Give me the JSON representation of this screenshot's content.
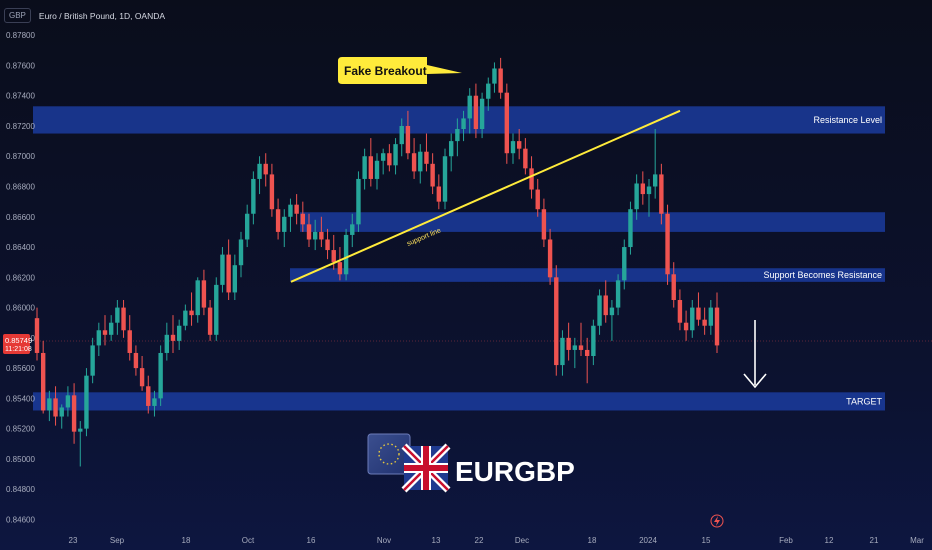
{
  "header": {
    "currency_badge": "GBP",
    "title": "Euro / British Pound, 1D, OANDA"
  },
  "price_label": {
    "value": "0.85749",
    "time": "11:21:08"
  },
  "annotations": {
    "fake_breakout": "Fake Breakout",
    "support_line": "support line",
    "zones": [
      "Resistance Level",
      "Support Becomes Resistance",
      "TARGET"
    ]
  },
  "logo": {
    "text": "EURGBP"
  },
  "colors": {
    "up": "#26a69a",
    "down": "#ef5350",
    "zone": "#1c3fa8",
    "line": "#ffeb3b",
    "bg": "#0b0f1f"
  },
  "chart_data": {
    "type": "candlestick",
    "ylim": [
      0.8455,
      0.8794
    ],
    "yticks": [
      "0.87800",
      "0.87600",
      "0.87400",
      "0.87200",
      "0.87000",
      "0.86800",
      "0.86600",
      "0.86400",
      "0.86200",
      "0.86000",
      "0.85800",
      "0.85600",
      "0.85400",
      "0.85200",
      "0.85000",
      "0.84800",
      "0.84600"
    ],
    "xticks": [
      "23",
      "Sep",
      "18",
      "Oct",
      "16",
      "Nov",
      "13",
      "22",
      "Dec",
      "18",
      "2024",
      "15",
      "Feb",
      "12",
      "21",
      "Mar"
    ],
    "zones": [
      {
        "label": "Resistance Level",
        "low": 0.8715,
        "high": 0.8733
      },
      {
        "label": "",
        "low": 0.865,
        "high": 0.8663
      },
      {
        "label": "Support Becomes Resistance",
        "low": 0.8617,
        "high": 0.8626
      },
      {
        "label": "TARGET",
        "low": 0.8532,
        "high": 0.8544
      }
    ],
    "support_line": {
      "start": 0.8617,
      "end": 0.873
    },
    "last_price": 0.85749,
    "candles": [
      {
        "o": 0.8593,
        "h": 0.86,
        "l": 0.8565,
        "c": 0.857
      },
      {
        "o": 0.857,
        "h": 0.8578,
        "l": 0.853,
        "c": 0.8532
      },
      {
        "o": 0.8532,
        "h": 0.8545,
        "l": 0.8525,
        "c": 0.854
      },
      {
        "o": 0.854,
        "h": 0.8548,
        "l": 0.8522,
        "c": 0.8528
      },
      {
        "o": 0.8528,
        "h": 0.8536,
        "l": 0.852,
        "c": 0.8534
      },
      {
        "o": 0.8534,
        "h": 0.8548,
        "l": 0.8528,
        "c": 0.8542
      },
      {
        "o": 0.8542,
        "h": 0.855,
        "l": 0.851,
        "c": 0.8518
      },
      {
        "o": 0.8518,
        "h": 0.8525,
        "l": 0.8495,
        "c": 0.852
      },
      {
        "o": 0.852,
        "h": 0.856,
        "l": 0.8515,
        "c": 0.8555
      },
      {
        "o": 0.8555,
        "h": 0.858,
        "l": 0.855,
        "c": 0.8575
      },
      {
        "o": 0.8575,
        "h": 0.859,
        "l": 0.8568,
        "c": 0.8585
      },
      {
        "o": 0.8585,
        "h": 0.8595,
        "l": 0.8575,
        "c": 0.8582
      },
      {
        "o": 0.8582,
        "h": 0.8595,
        "l": 0.8578,
        "c": 0.859
      },
      {
        "o": 0.859,
        "h": 0.8605,
        "l": 0.8582,
        "c": 0.86
      },
      {
        "o": 0.86,
        "h": 0.8605,
        "l": 0.858,
        "c": 0.8585
      },
      {
        "o": 0.8585,
        "h": 0.8595,
        "l": 0.8565,
        "c": 0.857
      },
      {
        "o": 0.857,
        "h": 0.8575,
        "l": 0.8555,
        "c": 0.856
      },
      {
        "o": 0.856,
        "h": 0.8568,
        "l": 0.8545,
        "c": 0.8548
      },
      {
        "o": 0.8548,
        "h": 0.8555,
        "l": 0.853,
        "c": 0.8535
      },
      {
        "o": 0.8535,
        "h": 0.8545,
        "l": 0.8528,
        "c": 0.854
      },
      {
        "o": 0.854,
        "h": 0.8575,
        "l": 0.8535,
        "c": 0.857
      },
      {
        "o": 0.857,
        "h": 0.859,
        "l": 0.8565,
        "c": 0.8582
      },
      {
        "o": 0.8582,
        "h": 0.8595,
        "l": 0.857,
        "c": 0.8578
      },
      {
        "o": 0.8578,
        "h": 0.8592,
        "l": 0.8572,
        "c": 0.8588
      },
      {
        "o": 0.8588,
        "h": 0.8602,
        "l": 0.8585,
        "c": 0.8598
      },
      {
        "o": 0.8598,
        "h": 0.861,
        "l": 0.8588,
        "c": 0.8595
      },
      {
        "o": 0.8595,
        "h": 0.862,
        "l": 0.859,
        "c": 0.8618
      },
      {
        "o": 0.8618,
        "h": 0.8625,
        "l": 0.8595,
        "c": 0.86
      },
      {
        "o": 0.86,
        "h": 0.8605,
        "l": 0.8578,
        "c": 0.8582
      },
      {
        "o": 0.8582,
        "h": 0.862,
        "l": 0.8578,
        "c": 0.8615
      },
      {
        "o": 0.8615,
        "h": 0.864,
        "l": 0.861,
        "c": 0.8635
      },
      {
        "o": 0.8635,
        "h": 0.8645,
        "l": 0.8605,
        "c": 0.861
      },
      {
        "o": 0.861,
        "h": 0.8635,
        "l": 0.8605,
        "c": 0.8628
      },
      {
        "o": 0.8628,
        "h": 0.865,
        "l": 0.862,
        "c": 0.8645
      },
      {
        "o": 0.8645,
        "h": 0.8668,
        "l": 0.864,
        "c": 0.8662
      },
      {
        "o": 0.8662,
        "h": 0.869,
        "l": 0.8655,
        "c": 0.8685
      },
      {
        "o": 0.8685,
        "h": 0.87,
        "l": 0.8675,
        "c": 0.8695
      },
      {
        "o": 0.8695,
        "h": 0.8702,
        "l": 0.868,
        "c": 0.8688
      },
      {
        "o": 0.8688,
        "h": 0.8695,
        "l": 0.866,
        "c": 0.8665
      },
      {
        "o": 0.8665,
        "h": 0.8672,
        "l": 0.8645,
        "c": 0.865
      },
      {
        "o": 0.865,
        "h": 0.8665,
        "l": 0.864,
        "c": 0.866
      },
      {
        "o": 0.866,
        "h": 0.8672,
        "l": 0.865,
        "c": 0.8668
      },
      {
        "o": 0.8668,
        "h": 0.8675,
        "l": 0.8655,
        "c": 0.8662
      },
      {
        "o": 0.8662,
        "h": 0.867,
        "l": 0.865,
        "c": 0.8655
      },
      {
        "o": 0.8655,
        "h": 0.8662,
        "l": 0.864,
        "c": 0.8645
      },
      {
        "o": 0.8645,
        "h": 0.8658,
        "l": 0.8638,
        "c": 0.865
      },
      {
        "o": 0.865,
        "h": 0.866,
        "l": 0.864,
        "c": 0.8645
      },
      {
        "o": 0.8645,
        "h": 0.8652,
        "l": 0.8632,
        "c": 0.8638
      },
      {
        "o": 0.8638,
        "h": 0.8648,
        "l": 0.8625,
        "c": 0.863
      },
      {
        "o": 0.863,
        "h": 0.864,
        "l": 0.8618,
        "c": 0.8622
      },
      {
        "o": 0.8622,
        "h": 0.8652,
        "l": 0.8618,
        "c": 0.8648
      },
      {
        "o": 0.8648,
        "h": 0.8662,
        "l": 0.864,
        "c": 0.8655
      },
      {
        "o": 0.8655,
        "h": 0.869,
        "l": 0.865,
        "c": 0.8685
      },
      {
        "o": 0.8685,
        "h": 0.8705,
        "l": 0.8678,
        "c": 0.87
      },
      {
        "o": 0.87,
        "h": 0.8712,
        "l": 0.868,
        "c": 0.8685
      },
      {
        "o": 0.8685,
        "h": 0.8702,
        "l": 0.8678,
        "c": 0.8697
      },
      {
        "o": 0.8697,
        "h": 0.8705,
        "l": 0.8688,
        "c": 0.8702
      },
      {
        "o": 0.8702,
        "h": 0.8708,
        "l": 0.869,
        "c": 0.8694
      },
      {
        "o": 0.8694,
        "h": 0.8712,
        "l": 0.8688,
        "c": 0.8708
      },
      {
        "o": 0.8708,
        "h": 0.8725,
        "l": 0.87,
        "c": 0.872
      },
      {
        "o": 0.872,
        "h": 0.873,
        "l": 0.8698,
        "c": 0.8702
      },
      {
        "o": 0.8702,
        "h": 0.8712,
        "l": 0.8685,
        "c": 0.869
      },
      {
        "o": 0.869,
        "h": 0.8708,
        "l": 0.8682,
        "c": 0.8703
      },
      {
        "o": 0.8703,
        "h": 0.8715,
        "l": 0.869,
        "c": 0.8695
      },
      {
        "o": 0.8695,
        "h": 0.8702,
        "l": 0.8675,
        "c": 0.868
      },
      {
        "o": 0.868,
        "h": 0.8688,
        "l": 0.8665,
        "c": 0.867
      },
      {
        "o": 0.867,
        "h": 0.8705,
        "l": 0.8665,
        "c": 0.87
      },
      {
        "o": 0.87,
        "h": 0.8715,
        "l": 0.869,
        "c": 0.871
      },
      {
        "o": 0.871,
        "h": 0.8725,
        "l": 0.87,
        "c": 0.8718
      },
      {
        "o": 0.8718,
        "h": 0.873,
        "l": 0.871,
        "c": 0.8725
      },
      {
        "o": 0.8725,
        "h": 0.8745,
        "l": 0.8715,
        "c": 0.874
      },
      {
        "o": 0.874,
        "h": 0.8748,
        "l": 0.8712,
        "c": 0.8718
      },
      {
        "o": 0.8718,
        "h": 0.8742,
        "l": 0.8712,
        "c": 0.8738
      },
      {
        "o": 0.8738,
        "h": 0.8752,
        "l": 0.873,
        "c": 0.8748
      },
      {
        "o": 0.8748,
        "h": 0.8762,
        "l": 0.8742,
        "c": 0.8758
      },
      {
        "o": 0.8758,
        "h": 0.8765,
        "l": 0.8738,
        "c": 0.8742
      },
      {
        "o": 0.8742,
        "h": 0.8748,
        "l": 0.8695,
        "c": 0.8702
      },
      {
        "o": 0.8702,
        "h": 0.8715,
        "l": 0.8695,
        "c": 0.871
      },
      {
        "o": 0.871,
        "h": 0.8718,
        "l": 0.8698,
        "c": 0.8705
      },
      {
        "o": 0.8705,
        "h": 0.8712,
        "l": 0.8688,
        "c": 0.8692
      },
      {
        "o": 0.8692,
        "h": 0.87,
        "l": 0.8672,
        "c": 0.8678
      },
      {
        "o": 0.8678,
        "h": 0.8685,
        "l": 0.866,
        "c": 0.8665
      },
      {
        "o": 0.8665,
        "h": 0.8672,
        "l": 0.864,
        "c": 0.8645
      },
      {
        "o": 0.8645,
        "h": 0.8652,
        "l": 0.8615,
        "c": 0.862
      },
      {
        "o": 0.862,
        "h": 0.8628,
        "l": 0.8555,
        "c": 0.8562
      },
      {
        "o": 0.8562,
        "h": 0.8585,
        "l": 0.8555,
        "c": 0.858
      },
      {
        "o": 0.858,
        "h": 0.859,
        "l": 0.8565,
        "c": 0.8572
      },
      {
        "o": 0.8572,
        "h": 0.858,
        "l": 0.856,
        "c": 0.8575
      },
      {
        "o": 0.8575,
        "h": 0.859,
        "l": 0.8568,
        "c": 0.8572
      },
      {
        "o": 0.8572,
        "h": 0.858,
        "l": 0.855,
        "c": 0.8568
      },
      {
        "o": 0.8568,
        "h": 0.8592,
        "l": 0.8562,
        "c": 0.8588
      },
      {
        "o": 0.8588,
        "h": 0.8612,
        "l": 0.8582,
        "c": 0.8608
      },
      {
        "o": 0.8608,
        "h": 0.8618,
        "l": 0.859,
        "c": 0.8595
      },
      {
        "o": 0.8595,
        "h": 0.8605,
        "l": 0.8578,
        "c": 0.86
      },
      {
        "o": 0.86,
        "h": 0.8622,
        "l": 0.8595,
        "c": 0.8618
      },
      {
        "o": 0.8618,
        "h": 0.8645,
        "l": 0.8612,
        "c": 0.864
      },
      {
        "o": 0.864,
        "h": 0.867,
        "l": 0.8635,
        "c": 0.8665
      },
      {
        "o": 0.8665,
        "h": 0.8688,
        "l": 0.8658,
        "c": 0.8682
      },
      {
        "o": 0.8682,
        "h": 0.869,
        "l": 0.8668,
        "c": 0.8675
      },
      {
        "o": 0.8675,
        "h": 0.8685,
        "l": 0.866,
        "c": 0.868
      },
      {
        "o": 0.868,
        "h": 0.8718,
        "l": 0.8672,
        "c": 0.8688
      },
      {
        "o": 0.8688,
        "h": 0.8695,
        "l": 0.8655,
        "c": 0.8662
      },
      {
        "o": 0.8662,
        "h": 0.8668,
        "l": 0.8615,
        "c": 0.8622
      },
      {
        "o": 0.8622,
        "h": 0.863,
        "l": 0.86,
        "c": 0.8605
      },
      {
        "o": 0.8605,
        "h": 0.8612,
        "l": 0.8585,
        "c": 0.859
      },
      {
        "o": 0.859,
        "h": 0.8598,
        "l": 0.8578,
        "c": 0.8585
      },
      {
        "o": 0.8585,
        "h": 0.8605,
        "l": 0.858,
        "c": 0.86
      },
      {
        "o": 0.86,
        "h": 0.861,
        "l": 0.8588,
        "c": 0.8592
      },
      {
        "o": 0.8592,
        "h": 0.86,
        "l": 0.8582,
        "c": 0.8588
      },
      {
        "o": 0.8588,
        "h": 0.8605,
        "l": 0.8582,
        "c": 0.86
      },
      {
        "o": 0.86,
        "h": 0.861,
        "l": 0.857,
        "c": 0.8575
      }
    ]
  }
}
